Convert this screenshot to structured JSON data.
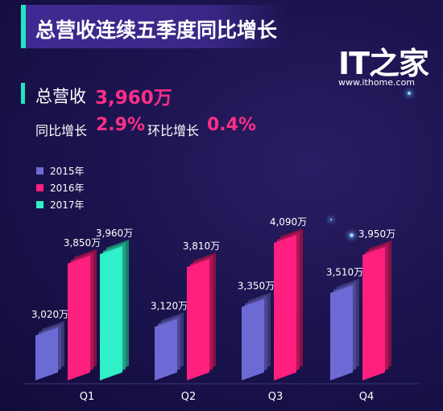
{
  "header": {
    "title": "总营收连续五季度同比增长"
  },
  "logo": {
    "mark": "IT之家",
    "url": "www.ithome.com"
  },
  "stats": {
    "total_label": "总营收",
    "total_value": "3,960万",
    "yoy_label": "同比增长",
    "yoy_value": "2.9%",
    "qoq_label": "环比增长",
    "qoq_value": "0.4%"
  },
  "colors": {
    "accent": "#21e6c1",
    "highlight": "#ff2e86",
    "s2015": "#6d6ad6",
    "s2016": "#ff1f7f",
    "s2017": "#2ff0c8"
  },
  "chart_data": {
    "type": "bar",
    "categories": [
      "Q1",
      "Q2",
      "Q3",
      "Q4"
    ],
    "series": [
      {
        "name": "2015年",
        "color": "#6d6ad6",
        "values": [
          3020,
          3120,
          3350,
          3510
        ],
        "labels": [
          "3,020万",
          "3,120万",
          "3,350万",
          "3,510万"
        ]
      },
      {
        "name": "2016年",
        "color": "#ff1f7f",
        "values": [
          3850,
          3810,
          4090,
          3950
        ],
        "labels": [
          "3,850万",
          "3,810万",
          "4,090万",
          "3,950万"
        ]
      },
      {
        "name": "2017年",
        "color": "#2ff0c8",
        "values": [
          3960,
          null,
          null,
          null
        ],
        "labels": [
          "3,960万",
          null,
          null,
          null
        ]
      }
    ],
    "legend_position": "top-left",
    "grid": false,
    "unit": "万"
  }
}
